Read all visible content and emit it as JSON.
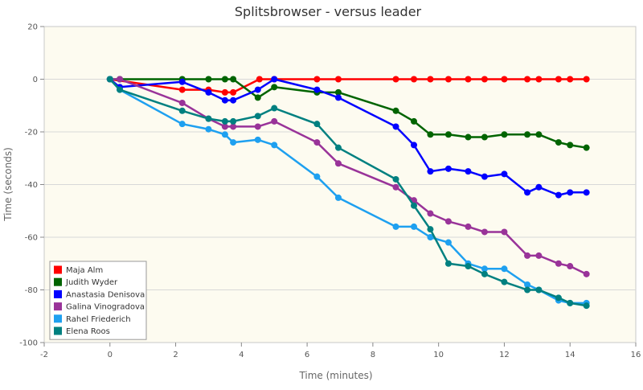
{
  "chart_data": {
    "type": "line",
    "title": "Splitsbrowser - versus leader",
    "xlabel": "Time (minutes)",
    "ylabel": "Time (seconds)",
    "xlim": [
      -2,
      16
    ],
    "ylim": [
      -100,
      20
    ],
    "xticks": [
      "-2",
      "0",
      "2",
      "4",
      "6",
      "8",
      "10",
      "12",
      "14",
      "16"
    ],
    "yticks": [
      "20",
      "0",
      "-20",
      "-40",
      "-60",
      "-80",
      "-100"
    ],
    "grid": "horizontal",
    "background_color": "#fdfbf0",
    "legend_position": "bottom-left",
    "series": [
      {
        "name": "Maja Alm",
        "color": "#ff0000",
        "points": [
          [
            0,
            0
          ],
          [
            2.2,
            -4
          ],
          [
            3.0,
            -4
          ],
          [
            3.5,
            -5
          ],
          [
            3.75,
            -5
          ],
          [
            4.55,
            0
          ],
          [
            5.0,
            0
          ],
          [
            6.3,
            0
          ],
          [
            6.95,
            0
          ],
          [
            8.7,
            0
          ],
          [
            9.25,
            0
          ],
          [
            9.75,
            0
          ],
          [
            10.3,
            0
          ],
          [
            10.9,
            0
          ],
          [
            11.4,
            0
          ],
          [
            12.0,
            0
          ],
          [
            12.7,
            0
          ],
          [
            13.05,
            0
          ],
          [
            13.65,
            0
          ],
          [
            14.0,
            0
          ],
          [
            14.5,
            0
          ]
        ]
      },
      {
        "name": "Judith Wyder",
        "color": "#006400",
        "points": [
          [
            0,
            0
          ],
          [
            0.3,
            0
          ],
          [
            2.2,
            0
          ],
          [
            3.0,
            0
          ],
          [
            3.5,
            0
          ],
          [
            3.75,
            0
          ],
          [
            4.5,
            -7
          ],
          [
            5.0,
            -3
          ],
          [
            6.3,
            -5
          ],
          [
            6.95,
            -5
          ],
          [
            8.7,
            -12
          ],
          [
            9.25,
            -16
          ],
          [
            9.75,
            -21
          ],
          [
            10.3,
            -21
          ],
          [
            10.9,
            -22
          ],
          [
            11.4,
            -22
          ],
          [
            12.0,
            -21
          ],
          [
            12.7,
            -21
          ],
          [
            13.05,
            -21
          ],
          [
            13.65,
            -24
          ],
          [
            14.0,
            -25
          ],
          [
            14.5,
            -26
          ]
        ]
      },
      {
        "name": "Anastasia Denisova",
        "color": "#0000ff",
        "points": [
          [
            0,
            0
          ],
          [
            0.3,
            -3
          ],
          [
            2.2,
            -1
          ],
          [
            3.0,
            -5
          ],
          [
            3.5,
            -8
          ],
          [
            3.75,
            -8
          ],
          [
            4.5,
            -4
          ],
          [
            5.0,
            0
          ],
          [
            6.3,
            -4
          ],
          [
            6.95,
            -7
          ],
          [
            8.7,
            -18
          ],
          [
            9.25,
            -25
          ],
          [
            9.75,
            -35
          ],
          [
            10.3,
            -34
          ],
          [
            10.9,
            -35
          ],
          [
            11.4,
            -37
          ],
          [
            12.0,
            -36
          ],
          [
            12.7,
            -43
          ],
          [
            13.05,
            -41
          ],
          [
            13.65,
            -44
          ],
          [
            14.0,
            -43
          ],
          [
            14.5,
            -43
          ]
        ]
      },
      {
        "name": "Galina Vinogradova",
        "color": "#993399",
        "points": [
          [
            0,
            0
          ],
          [
            0.3,
            0
          ],
          [
            2.2,
            -9
          ],
          [
            3.0,
            -15
          ],
          [
            3.5,
            -18
          ],
          [
            3.75,
            -18
          ],
          [
            4.5,
            -18
          ],
          [
            5.0,
            -16
          ],
          [
            6.3,
            -24
          ],
          [
            6.95,
            -32
          ],
          [
            8.7,
            -41
          ],
          [
            9.25,
            -46
          ],
          [
            9.75,
            -51
          ],
          [
            10.3,
            -54
          ],
          [
            10.9,
            -56
          ],
          [
            11.4,
            -58
          ],
          [
            12.0,
            -58
          ],
          [
            12.7,
            -67
          ],
          [
            13.05,
            -67
          ],
          [
            13.65,
            -70
          ],
          [
            14.0,
            -71
          ],
          [
            14.5,
            -74
          ]
        ]
      },
      {
        "name": "Rahel Friederich",
        "color": "#1ea0f0",
        "points": [
          [
            0,
            0
          ],
          [
            0.3,
            -4
          ],
          [
            2.2,
            -17
          ],
          [
            3.0,
            -19
          ],
          [
            3.5,
            -21
          ],
          [
            3.75,
            -24
          ],
          [
            4.5,
            -23
          ],
          [
            5.0,
            -25
          ],
          [
            6.3,
            -37
          ],
          [
            6.95,
            -45
          ],
          [
            8.7,
            -56
          ],
          [
            9.25,
            -56
          ],
          [
            9.75,
            -60
          ],
          [
            10.3,
            -62
          ],
          [
            10.9,
            -70
          ],
          [
            11.4,
            -72
          ],
          [
            12.0,
            -72
          ],
          [
            12.7,
            -78
          ],
          [
            13.05,
            -80
          ],
          [
            13.65,
            -84
          ],
          [
            14.0,
            -85
          ],
          [
            14.5,
            -85
          ]
        ]
      },
      {
        "name": "Elena Roos",
        "color": "#008080",
        "points": [
          [
            0,
            0
          ],
          [
            0.3,
            -4
          ],
          [
            2.2,
            -12
          ],
          [
            3.0,
            -15
          ],
          [
            3.5,
            -16
          ],
          [
            3.75,
            -16
          ],
          [
            4.5,
            -14
          ],
          [
            5.0,
            -11
          ],
          [
            6.3,
            -17
          ],
          [
            6.95,
            -26
          ],
          [
            8.7,
            -38
          ],
          [
            9.25,
            -48
          ],
          [
            9.75,
            -57
          ],
          [
            10.3,
            -70
          ],
          [
            10.9,
            -71
          ],
          [
            11.4,
            -74
          ],
          [
            12.0,
            -77
          ],
          [
            12.7,
            -80
          ],
          [
            13.05,
            -80
          ],
          [
            13.65,
            -83
          ],
          [
            14.0,
            -85
          ],
          [
            14.5,
            -86
          ]
        ]
      }
    ]
  }
}
